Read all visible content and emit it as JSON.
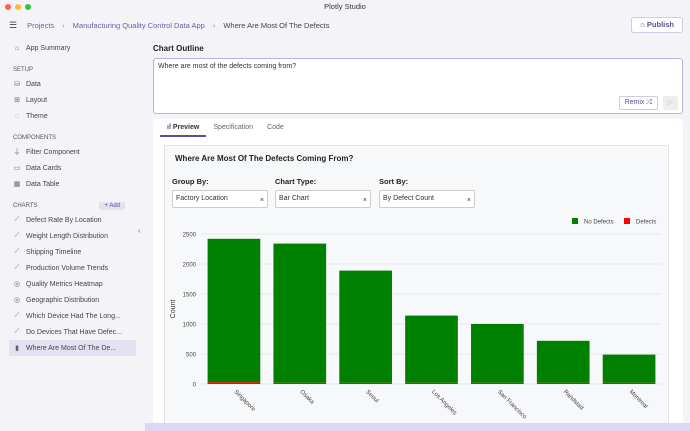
{
  "app_title": "Plotly Studio",
  "breadcrumb": [
    "Projects",
    "Manufacturing Quality Control Data App",
    "Where Are Most Of The Defects"
  ],
  "publish_label": "Publish",
  "sidebar": {
    "app_summary": "App Summary",
    "setup_label": "SETUP",
    "setup": [
      {
        "icon": "database-icon",
        "label": "Data"
      },
      {
        "icon": "layout-icon",
        "label": "Layout"
      },
      {
        "icon": "palette-icon",
        "label": "Theme"
      }
    ],
    "components_label": "COMPONENTS",
    "components": [
      {
        "icon": "filter-icon",
        "label": "Filter Component"
      },
      {
        "icon": "card-icon",
        "label": "Data Cards"
      },
      {
        "icon": "table-icon",
        "label": "Data Table"
      }
    ],
    "charts_label": "CHARTS",
    "add_label": "+ Add",
    "charts": [
      {
        "icon": "chart-icon",
        "label": "Defect Rate By Location"
      },
      {
        "icon": "chart-icon",
        "label": "Weight Length Distribution"
      },
      {
        "icon": "chart-icon",
        "label": "Shipping Timeline"
      },
      {
        "icon": "chart-icon",
        "label": "Production Volume Trends"
      },
      {
        "icon": "globe-icon",
        "label": "Quality Metrics Heatmap"
      },
      {
        "icon": "globe-icon",
        "label": "Geographic Distribution"
      },
      {
        "icon": "chart-icon",
        "label": "Which Device Had The Long..."
      },
      {
        "icon": "chart-icon",
        "label": "Do Devices That Have Defec..."
      },
      {
        "icon": "bar-chart-icon",
        "label": "Where Are Most Of The De..."
      }
    ]
  },
  "outline": {
    "title": "Chart Outline",
    "text": "Where are most of the defects coming from?",
    "remix_label": "Remix"
  },
  "tabs": [
    "Preview",
    "Specification",
    "Code"
  ],
  "card": {
    "title": "Where Are Most Of The Defects Coming From?",
    "controls": [
      {
        "label": "Group By:",
        "value": "Factory Location"
      },
      {
        "label": "Chart Type:",
        "value": "Bar Chart"
      },
      {
        "label": "Sort By:",
        "value": "By Defect Count"
      }
    ]
  },
  "chart_data": {
    "type": "bar",
    "stacked": true,
    "categories": [
      "Singapore",
      "Osaka",
      "Seoul",
      "Los Angeles",
      "San Francisco",
      "Randstad",
      "Montreal"
    ],
    "series": [
      {
        "name": "No Defects",
        "color": "#008000",
        "values": [
          2390,
          2320,
          1870,
          1120,
          980,
          700,
          470
        ]
      },
      {
        "name": "Defects",
        "color": "#ff0000",
        "values": [
          30,
          20,
          20,
          20,
          20,
          20,
          20
        ]
      }
    ],
    "ylabel": "Count",
    "ylim": [
      0,
      2500
    ],
    "yticks": [
      0,
      500,
      1000,
      1500,
      2000,
      2500
    ],
    "grid": true,
    "legend": "top-right"
  }
}
